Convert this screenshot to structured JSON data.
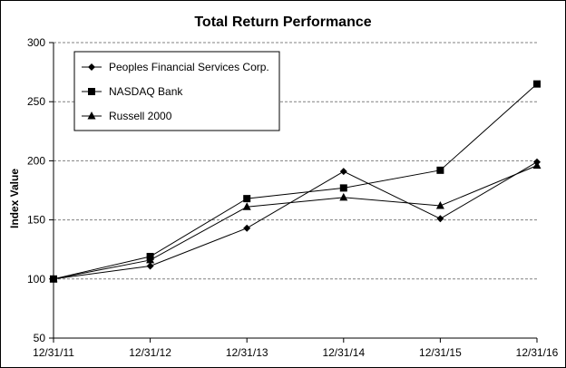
{
  "chart_data": {
    "type": "line",
    "title": "Total Return Performance",
    "xlabel": "",
    "ylabel": "Index Value",
    "x": [
      "12/31/11",
      "12/31/12",
      "12/31/13",
      "12/31/14",
      "12/31/15",
      "12/31/16"
    ],
    "y_ticks": [
      "50",
      "100",
      "150",
      "200",
      "250",
      "300"
    ],
    "ylim": [
      50,
      300
    ],
    "grid": "horizontal dashed",
    "legend_position": "top-left",
    "series": [
      {
        "name": "Peoples Financial Services Corp.",
        "marker": "diamond",
        "values": [
          100,
          111,
          143,
          191,
          151,
          199
        ]
      },
      {
        "name": "NASDAQ Bank",
        "marker": "square",
        "values": [
          100,
          119,
          168,
          177,
          192,
          265
        ]
      },
      {
        "name": "Russell 2000",
        "marker": "triangle",
        "values": [
          100,
          116,
          161,
          169,
          162,
          196
        ]
      }
    ],
    "colors": {
      "line": "#000000",
      "grid": "#808080"
    }
  }
}
